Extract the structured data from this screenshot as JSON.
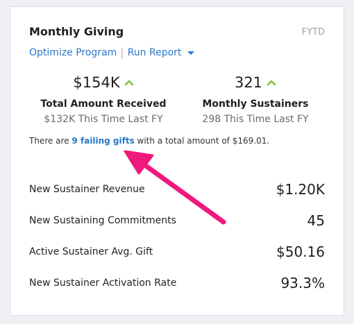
{
  "widget": {
    "title": "Monthly Giving",
    "period": "FYTD",
    "links": {
      "optimize": "Optimize Program",
      "separator": "|",
      "run_report": "Run Report"
    },
    "stats": [
      {
        "value": "$154K",
        "label": "Total Amount Received",
        "comparison": "$132K This Time Last FY",
        "trend": "up-arrow"
      },
      {
        "value": "321",
        "label": "Monthly Sustainers",
        "comparison": "298 This Time Last FY",
        "trend": "up-arrow"
      }
    ],
    "notice": {
      "prefix": "There are ",
      "link": "9 failing gifts",
      "suffix": " with a total amount of $169.01."
    },
    "metrics": [
      {
        "label": "New Sustainer Revenue",
        "value": "$1.20K"
      },
      {
        "label": "New Sustaining Commitments",
        "value": "45"
      },
      {
        "label": "Active Sustainer Avg. Gift",
        "value": "$50.16"
      },
      {
        "label": "New Sustainer Activation Rate",
        "value": "93.3%"
      }
    ]
  },
  "colors": {
    "link": "#2a78c6",
    "trend_up": "#7cc242",
    "annotation_arrow": "#f0197d"
  }
}
